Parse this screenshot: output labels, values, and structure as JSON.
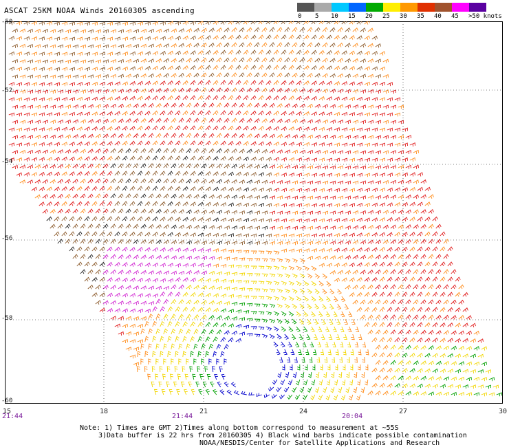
{
  "title": "ASCAT 25KM NOAA Winds 20160305 ascending",
  "legend": {
    "labels": [
      "0",
      "5",
      "10",
      "15",
      "20",
      "25",
      "30",
      "35",
      "40",
      "45",
      ">50 knots"
    ],
    "colors": [
      "#555555",
      "#aaaaaa",
      "#00c8ff",
      "#0066ff",
      "#00aa00",
      "#ffee00",
      "#ff9900",
      "#e03000",
      "#a0522d",
      "#ff00ff",
      "#5a00a0"
    ]
  },
  "map": {
    "lat_labels": [
      "-50",
      "-52",
      "-54",
      "-56",
      "-58",
      "-60"
    ],
    "lon_labels": [
      "15",
      "18",
      "21",
      "24",
      "27",
      "30"
    ],
    "time_labels": [
      "21:44",
      "21:44",
      "20:04"
    ],
    "barb_colors": {
      "calm": "#0000cc",
      "green": "#00a000",
      "yellow": "#f2d600",
      "orange": "#ff8c1a",
      "red": "#e01818",
      "brown": "#8b5a2b",
      "black": "#222222",
      "magenta": "#d020d0"
    }
  },
  "notes": {
    "line1": "Note: 1) Times are GMT 2)Times along bottom correspond to measurement at ~55S",
    "line2": "3)Data buffer is 22 hrs from 20160305 4) Black wind barbs indicate possible contamination",
    "line3": "NOAA/NESDIS/Center for Satellite Applications and Research"
  }
}
